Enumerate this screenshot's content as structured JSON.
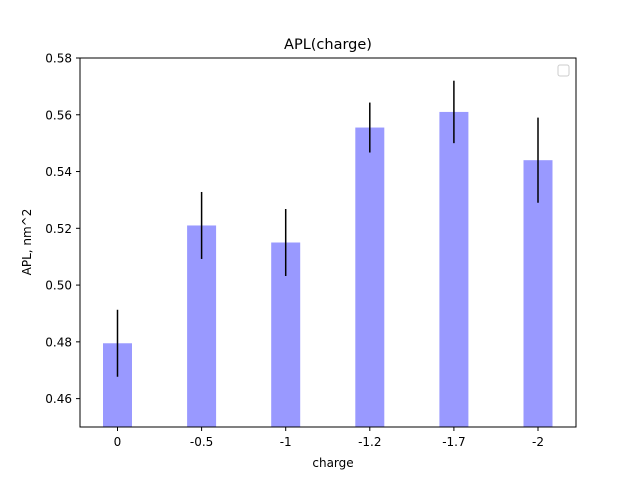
{
  "chart_data": {
    "type": "bar",
    "title": "APL(charge)",
    "xlabel": "charge",
    "ylabel": "APL, nm^2",
    "categories": [
      "0",
      "-0.5",
      "-1",
      "-1.2",
      "-1.7",
      "-2"
    ],
    "values": [
      0.4795,
      0.521,
      0.515,
      0.5555,
      0.561,
      0.544
    ],
    "errors": [
      0.0118,
      0.0118,
      0.0118,
      0.0088,
      0.011,
      0.015
    ],
    "ylim": [
      0.45,
      0.58
    ],
    "yticks": [
      0.46,
      0.48,
      0.5,
      0.52,
      0.54,
      0.56,
      0.58
    ],
    "ytick_labels": [
      "0.46",
      "0.48",
      "0.50",
      "0.52",
      "0.54",
      "0.56",
      "0.58"
    ],
    "bar_color": "#9999ff",
    "error_color": "#000000",
    "grid": false,
    "legend": "top-right (empty)"
  }
}
